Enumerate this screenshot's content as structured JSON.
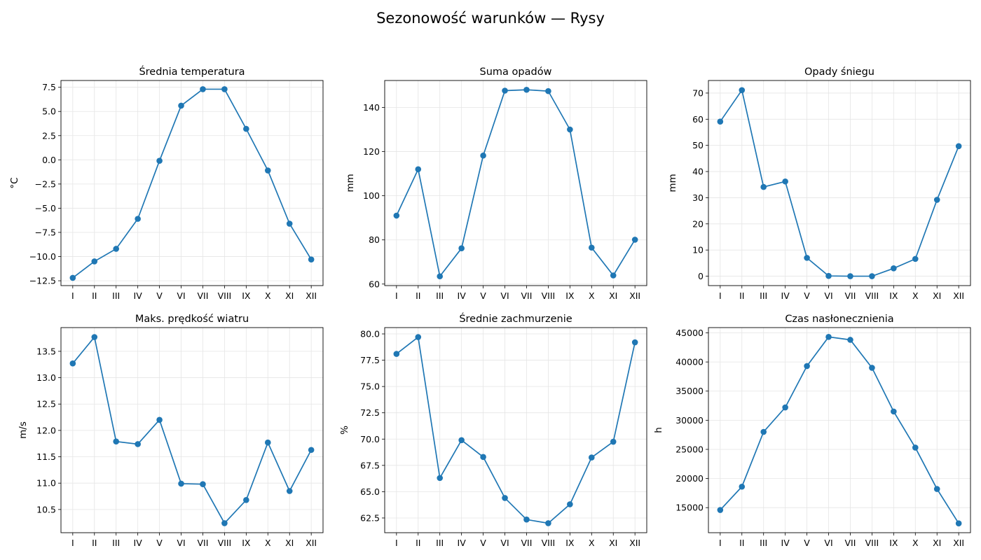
{
  "figure": {
    "title": "Sezonowość warunków — Rysy"
  },
  "months": [
    "I",
    "II",
    "III",
    "IV",
    "V",
    "VI",
    "VII",
    "VIII",
    "IX",
    "X",
    "XI",
    "XII"
  ],
  "colors": {
    "line": "#1f77b4",
    "grid": "#e5e5e5",
    "axis": "#000000"
  },
  "chart_data": [
    {
      "type": "line",
      "title": "Średnia temperatura",
      "ylabel": "°C",
      "categories": [
        "I",
        "II",
        "III",
        "IV",
        "V",
        "VI",
        "VII",
        "VIII",
        "IX",
        "X",
        "XI",
        "XII"
      ],
      "values": [
        -12.2,
        -10.5,
        -9.2,
        -6.1,
        -0.1,
        5.6,
        7.3,
        7.3,
        3.2,
        -1.1,
        -6.6,
        -10.3
      ],
      "ylim": [
        -13.0,
        8.2
      ],
      "yticks": [
        -12.5,
        -10.0,
        -7.5,
        -5.0,
        -2.5,
        0.0,
        2.5,
        5.0,
        7.5
      ],
      "ytick_labels": [
        "−12.5",
        "−10.0",
        "−7.5",
        "−5.0",
        "−2.5",
        "0.0",
        "2.5",
        "5.0",
        "7.5"
      ],
      "grid": true
    },
    {
      "type": "line",
      "title": "Suma opadów",
      "ylabel": "mm",
      "categories": [
        "I",
        "II",
        "III",
        "IV",
        "V",
        "VI",
        "VII",
        "VIII",
        "IX",
        "X",
        "XI",
        "XII"
      ],
      "values": [
        91.0,
        112.0,
        63.5,
        76.2,
        118.2,
        147.6,
        148.0,
        147.4,
        130.0,
        76.5,
        63.9,
        80.1
      ],
      "ylim": [
        59.3,
        152.2
      ],
      "yticks": [
        60,
        80,
        100,
        120,
        140
      ],
      "ytick_labels": [
        "60",
        "80",
        "100",
        "120",
        "140"
      ],
      "grid": true
    },
    {
      "type": "line",
      "title": "Opady śniegu",
      "ylabel": "mm",
      "categories": [
        "I",
        "II",
        "III",
        "IV",
        "V",
        "VI",
        "VII",
        "VIII",
        "IX",
        "X",
        "XI",
        "XII"
      ],
      "values": [
        59.1,
        71.1,
        34.1,
        36.2,
        7.0,
        0.1,
        0.0,
        0.0,
        3.0,
        6.6,
        29.2,
        49.7
      ],
      "ylim": [
        -3.6,
        74.8
      ],
      "yticks": [
        0,
        10,
        20,
        30,
        40,
        50,
        60,
        70
      ],
      "ytick_labels": [
        "0",
        "10",
        "20",
        "30",
        "40",
        "50",
        "60",
        "70"
      ],
      "grid": true
    },
    {
      "type": "line",
      "title": "Maks. prędkość wiatru",
      "ylabel": "m/s",
      "categories": [
        "I",
        "II",
        "III",
        "IV",
        "V",
        "VI",
        "VII",
        "VIII",
        "IX",
        "X",
        "XI",
        "XII"
      ],
      "values": [
        13.27,
        13.77,
        11.79,
        11.74,
        12.2,
        10.99,
        10.98,
        10.24,
        10.68,
        11.77,
        10.85,
        11.63
      ],
      "ylim": [
        10.06,
        13.95
      ],
      "yticks": [
        10.5,
        11.0,
        11.5,
        12.0,
        12.5,
        13.0,
        13.5
      ],
      "ytick_labels": [
        "10.5",
        "11.0",
        "11.5",
        "12.0",
        "12.5",
        "13.0",
        "13.5"
      ],
      "grid": true
    },
    {
      "type": "line",
      "title": "Średnie zachmurzenie",
      "ylabel": "%",
      "categories": [
        "I",
        "II",
        "III",
        "IV",
        "V",
        "VI",
        "VII",
        "VIII",
        "IX",
        "X",
        "XI",
        "XII"
      ],
      "values": [
        78.1,
        79.7,
        66.3,
        69.9,
        68.3,
        64.4,
        62.35,
        62.0,
        63.8,
        68.25,
        69.75,
        79.2
      ],
      "ylim": [
        61.1,
        80.6
      ],
      "yticks": [
        62.5,
        65.0,
        67.5,
        70.0,
        72.5,
        75.0,
        77.5,
        80.0
      ],
      "ytick_labels": [
        "62.5",
        "65.0",
        "67.5",
        "70.0",
        "72.5",
        "75.0",
        "77.5",
        "80.0"
      ],
      "grid": true
    },
    {
      "type": "line",
      "title": "Czas nasłonecznienia",
      "ylabel": "h",
      "categories": [
        "I",
        "II",
        "III",
        "IV",
        "V",
        "VI",
        "VII",
        "VIII",
        "IX",
        "X",
        "XI",
        "XII"
      ],
      "values": [
        14600,
        18600,
        28000,
        32200,
        39300,
        44300,
        43800,
        39000,
        31500,
        25300,
        18200,
        12300
      ],
      "ylim": [
        10700,
        45900
      ],
      "yticks": [
        15000,
        20000,
        25000,
        30000,
        35000,
        40000,
        45000
      ],
      "ytick_labels": [
        "15000",
        "20000",
        "25000",
        "30000",
        "35000",
        "40000",
        "45000"
      ],
      "grid": true
    }
  ]
}
